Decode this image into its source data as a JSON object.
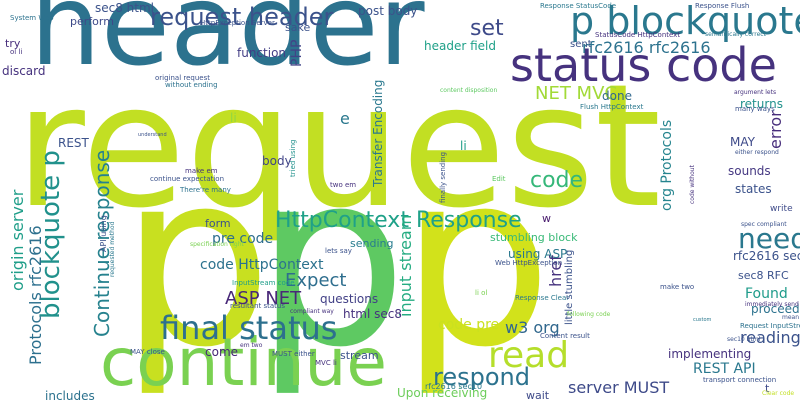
{
  "background": "#ffffff",
  "words": [
    {
      "text": "request",
      "color": "#c2df23"
    },
    {
      "text": "header",
      "color": "#2c728e"
    },
    {
      "text": "p",
      "color": "#c8e020"
    },
    {
      "text": "p",
      "color": "#5ec962"
    },
    {
      "text": "p",
      "color": "#d2e21b"
    },
    {
      "text": "continue",
      "color": "#7ad151"
    },
    {
      "text": "status code",
      "color": "#46327e"
    },
    {
      "text": "p blockquote",
      "color": "#2a788e"
    },
    {
      "text": "final status",
      "color": "#2d708e"
    },
    {
      "text": "request header",
      "color": "#3b528b"
    },
    {
      "text": "blockquote p",
      "color": "#21918c"
    },
    {
      "text": "Continue response",
      "color": "#26828e"
    },
    {
      "text": "HttpContext Response",
      "color": "#1fa188"
    },
    {
      "text": "read",
      "color": "#b5de2b"
    },
    {
      "text": "respond",
      "color": "#2c728e"
    },
    {
      "text": "need",
      "color": "#2a788e"
    },
    {
      "text": "code",
      "color": "#35b779"
    },
    {
      "text": "set",
      "color": "#3e4a89"
    },
    {
      "text": "sec8 html",
      "color": "#3b528b"
    },
    {
      "text": "NET MVC",
      "color": "#a2da37"
    },
    {
      "text": "rfc2616 rfc2616",
      "color": "#2c728e"
    },
    {
      "text": "org Protocols",
      "color": "#25848e"
    },
    {
      "text": "error",
      "color": "#472d7b"
    },
    {
      "text": "origin server",
      "color": "#1f9e89"
    },
    {
      "text": "Protocols rfc2616",
      "color": "#2d708e"
    },
    {
      "text": "ASP NET",
      "color": "#482878"
    },
    {
      "text": "Expect",
      "color": "#2e6e8e"
    },
    {
      "text": "code HttpContext",
      "color": "#2c728e"
    },
    {
      "text": "input stream",
      "color": "#25ac82"
    },
    {
      "text": "href",
      "color": "#46327e"
    },
    {
      "text": "server MUST",
      "color": "#3e4a89"
    },
    {
      "text": "w3 org",
      "color": "#31688e"
    },
    {
      "text": "reading",
      "color": "#3b528b"
    },
    {
      "text": "REST API",
      "color": "#2a788e"
    },
    {
      "text": "Found",
      "color": "#1e9b8a"
    },
    {
      "text": "code pre",
      "color": "#cae11f"
    },
    {
      "text": "pre code",
      "color": "#2e6e8e"
    },
    {
      "text": "header field",
      "color": "#1fa088"
    },
    {
      "text": "post body",
      "color": "#3b528b"
    },
    {
      "text": "perform",
      "color": "#3e4a89"
    },
    {
      "text": "discard",
      "color": "#46327e"
    },
    {
      "text": "try",
      "color": "#472d7b"
    },
    {
      "text": "function",
      "color": "#433e85"
    },
    {
      "text": "PHP",
      "color": "#414487"
    },
    {
      "text": "sake",
      "color": "#3b528b"
    },
    {
      "text": "Transfer Encoding",
      "color": "#2a788e"
    },
    {
      "text": "done",
      "color": "#31688e"
    },
    {
      "text": "returns",
      "color": "#21918c"
    },
    {
      "text": "MAY",
      "color": "#3e4a89"
    },
    {
      "text": "sounds",
      "color": "#453882"
    },
    {
      "text": "states",
      "color": "#3b528b"
    },
    {
      "text": "body",
      "color": "#414487"
    },
    {
      "text": "form",
      "color": "#3b528b"
    },
    {
      "text": "questions",
      "color": "#424086"
    },
    {
      "text": "html sec8",
      "color": "#46327e"
    },
    {
      "text": "sending",
      "color": "#287c8e"
    },
    {
      "text": "stumbling block",
      "color": "#38b977"
    },
    {
      "text": "using ASP",
      "color": "#2a788e"
    },
    {
      "text": "rfc2616 sec8",
      "color": "#3b528b"
    },
    {
      "text": "proceeding",
      "color": "#2c728e"
    },
    {
      "text": "implementing",
      "color": "#46327e"
    },
    {
      "text": "come",
      "color": "#482878"
    },
    {
      "text": "stream",
      "color": "#3b528b"
    },
    {
      "text": "Upon receiving",
      "color": "#6ccd5a"
    },
    {
      "text": "wait",
      "color": "#3e4a89"
    },
    {
      "text": "includes",
      "color": "#2c728e"
    },
    {
      "text": "REST",
      "color": "#3b528b"
    },
    {
      "text": "li",
      "color": "#90d743"
    },
    {
      "text": "li",
      "color": "#1f9e89"
    },
    {
      "text": "e",
      "color": "#2a788e"
    },
    {
      "text": "w",
      "color": "#481b6d"
    },
    {
      "text": "t",
      "color": "#3e4a89"
    },
    {
      "text": "sec8 RFC",
      "color": "#3b528b"
    },
    {
      "text": "write",
      "color": "#3e4a89"
    },
    {
      "text": "System Web",
      "color": "#2c728e"
    },
    {
      "text": "ol li",
      "color": "#46327e"
    },
    {
      "text": "HttpException Server",
      "color": "#3b528b"
    },
    {
      "text": "Response StatusCode",
      "color": "#2a788e"
    },
    {
      "text": "Response Flush",
      "color": "#3b528b"
    },
    {
      "text": "StatusCode HttpContext",
      "color": "#46327e"
    },
    {
      "text": "semantically correct",
      "color": "#2a788e"
    },
    {
      "text": "sent",
      "color": "#3b528b"
    },
    {
      "text": "original request",
      "color": "#3b528b"
    },
    {
      "text": "without ending",
      "color": "#2c728e"
    },
    {
      "text": "content disposition",
      "color": "#5ec962"
    },
    {
      "text": "argument lets",
      "color": "#46327e"
    },
    {
      "text": "many ways",
      "color": "#3b528b"
    },
    {
      "text": "Flush HttpContext",
      "color": "#2a788e"
    },
    {
      "text": "either respond",
      "color": "#3b528b"
    },
    {
      "text": "tried using",
      "color": "#21918c"
    },
    {
      "text": "two em",
      "color": "#46327e"
    },
    {
      "text": "make em",
      "color": "#46327e"
    },
    {
      "text": "continue expectation",
      "color": "#3b528b"
    },
    {
      "text": "There're many",
      "color": "#2c728e"
    },
    {
      "text": "specification right",
      "color": "#7ad151"
    },
    {
      "text": "API using",
      "color": "#3b528b"
    },
    {
      "text": "requested method",
      "color": "#2a788e"
    },
    {
      "text": "InputStream code",
      "color": "#1f9e89"
    },
    {
      "text": "resultant status",
      "color": "#3b528b"
    },
    {
      "text": "compliant way",
      "color": "#46327e"
    },
    {
      "text": "lets say",
      "color": "#3b528b"
    },
    {
      "text": "Web HttpException",
      "color": "#3b528b"
    },
    {
      "text": "Response Clear",
      "color": "#2a788e"
    },
    {
      "text": "make two",
      "color": "#3b528b"
    },
    {
      "text": "spec compliant",
      "color": "#3b528b"
    },
    {
      "text": "immediately send",
      "color": "#46327e"
    },
    {
      "text": "Request InputStream",
      "color": "#2c728e"
    },
    {
      "text": "sec10 html",
      "color": "#3b528b"
    },
    {
      "text": "transport connection",
      "color": "#3b528b"
    },
    {
      "text": "Clear code",
      "color": "#c2df23"
    },
    {
      "text": "little stumbling",
      "color": "#3b528b"
    },
    {
      "text": "following code",
      "color": "#7ad151"
    },
    {
      "text": "Content result",
      "color": "#3b528b"
    },
    {
      "text": "rfc2616 sec10",
      "color": "#2a788e"
    },
    {
      "text": "MAY close",
      "color": "#3b528b"
    },
    {
      "text": "em two",
      "color": "#46327e"
    },
    {
      "text": "MUST either",
      "color": "#3b528b"
    },
    {
      "text": "MVC li",
      "color": "#46327e"
    },
    {
      "text": "Edit",
      "color": "#5ec962"
    },
    {
      "text": "finally sending",
      "color": "#3b528b"
    },
    {
      "text": "code without",
      "color": "#46327e"
    },
    {
      "text": "li ol",
      "color": "#7ad151"
    },
    {
      "text": "understand",
      "color": "#3b528b"
    },
    {
      "text": "custom",
      "color": "#2a788e"
    },
    {
      "text": "mean",
      "color": "#3b528b"
    }
  ]
}
